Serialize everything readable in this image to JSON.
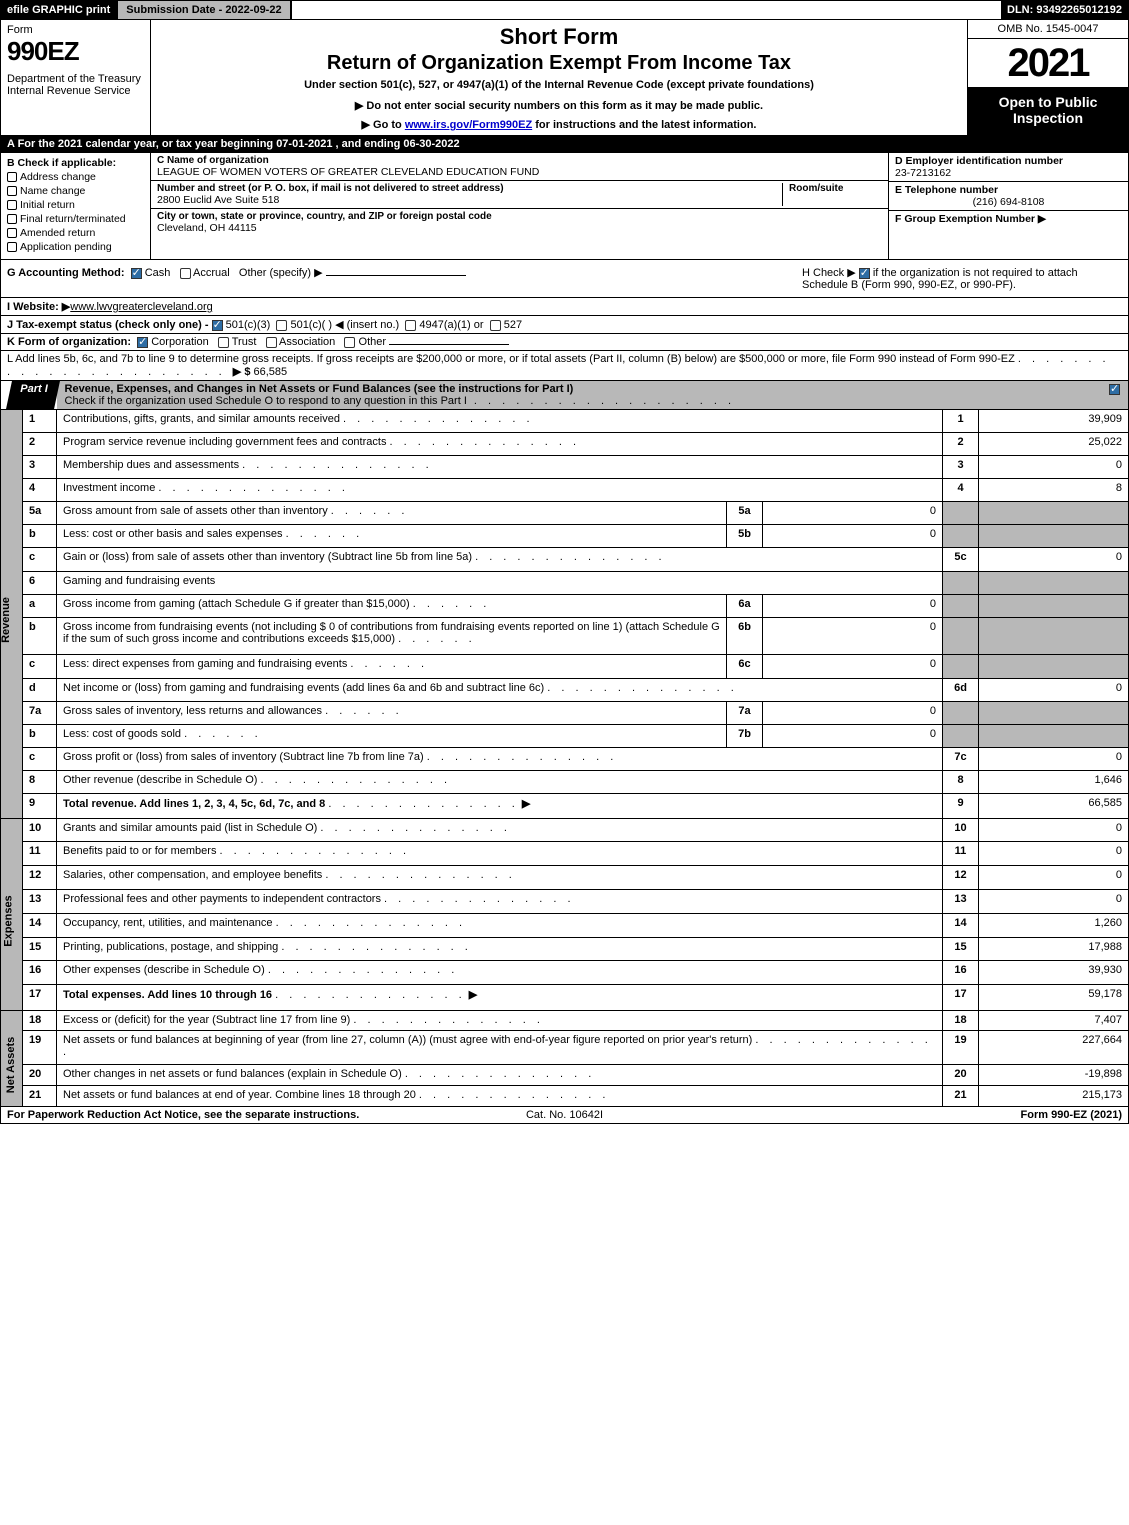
{
  "topbar": {
    "efile": "efile GRAPHIC print",
    "subdate": "Submission Date - 2022-09-22",
    "dln": "DLN: 93492265012192"
  },
  "header": {
    "formword": "Form",
    "formnum": "990EZ",
    "dept": "Department of the Treasury\nInternal Revenue Service",
    "short": "Short Form",
    "return": "Return of Organization Exempt From Income Tax",
    "under": "Under section 501(c), 527, or 4947(a)(1) of the Internal Revenue Code (except private foundations)",
    "ssn": "▶ Do not enter social security numbers on this form as it may be made public.",
    "goto_pre": "▶ Go to ",
    "goto_link": "www.irs.gov/Form990EZ",
    "goto_post": " for instructions and the latest information.",
    "omb": "OMB No. 1545-0047",
    "year": "2021",
    "open": "Open to Public Inspection"
  },
  "rowA": "A  For the 2021 calendar year, or tax year beginning 07-01-2021 , and ending 06-30-2022",
  "sectionB": {
    "head": "B  Check if applicable:",
    "items": [
      "Address change",
      "Name change",
      "Initial return",
      "Final return/terminated",
      "Amended return",
      "Application pending"
    ]
  },
  "sectionC": {
    "name_label": "C Name of organization",
    "name": "LEAGUE OF WOMEN VOTERS OF GREATER CLEVELAND EDUCATION FUND",
    "street_label": "Number and street (or P. O. box, if mail is not delivered to street address)",
    "room_label": "Room/suite",
    "street": "2800 Euclid Ave Suite 518",
    "city_label": "City or town, state or province, country, and ZIP or foreign postal code",
    "city": "Cleveland, OH  44115"
  },
  "sectionD": {
    "label": "D Employer identification number",
    "value": "23-7213162"
  },
  "sectionE": {
    "label": "E Telephone number",
    "value": "(216) 694-8108"
  },
  "sectionF": {
    "label": "F Group Exemption Number ▶"
  },
  "rowG": {
    "label": "G Accounting Method:",
    "cash": "Cash",
    "accrual": "Accrual",
    "other": "Other (specify) ▶"
  },
  "rowH": {
    "text1": "H  Check ▶ ",
    "text2": " if the organization is not required to attach Schedule B (Form 990, 990-EZ, or 990-PF)."
  },
  "rowI": {
    "label": "I Website: ▶",
    "value": "www.lwvgreatercleveland.org"
  },
  "rowJ": {
    "label": "J Tax-exempt status (check only one) - ",
    "o1": "501(c)(3)",
    "o2": "501(c)(  ) ◀ (insert no.)",
    "o3": "4947(a)(1) or",
    "o4": "527"
  },
  "rowK": {
    "label": "K Form of organization:",
    "items": [
      "Corporation",
      "Trust",
      "Association",
      "Other"
    ]
  },
  "rowL": {
    "text": "L Add lines 5b, 6c, and 7b to line 9 to determine gross receipts. If gross receipts are $200,000 or more, or if total assets (Part II, column (B) below) are $500,000 or more, file Form 990 instead of Form 990-EZ",
    "arrow": "▶ $",
    "value": "66,585"
  },
  "partI": {
    "tab": "Part I",
    "title": "Revenue, Expenses, and Changes in Net Assets or Fund Balances (see the instructions for Part I)",
    "subtitle": "Check if the organization used Schedule O to respond to any question in this Part I"
  },
  "side_labels": {
    "revenue": "Revenue",
    "expenses": "Expenses",
    "netassets": "Net Assets"
  },
  "lines": {
    "revenue": [
      {
        "no": "1",
        "desc": "Contributions, gifts, grants, and similar amounts received",
        "box": "1",
        "val": "39,909"
      },
      {
        "no": "2",
        "desc": "Program service revenue including government fees and contracts",
        "box": "2",
        "val": "25,022"
      },
      {
        "no": "3",
        "desc": "Membership dues and assessments",
        "box": "3",
        "val": "0"
      },
      {
        "no": "4",
        "desc": "Investment income",
        "box": "4",
        "val": "8"
      },
      {
        "no": "5a",
        "desc": "Gross amount from sale of assets other than inventory",
        "inlabel": "5a",
        "inval": "0"
      },
      {
        "no": "b",
        "desc": "Less: cost or other basis and sales expenses",
        "inlabel": "5b",
        "inval": "0"
      },
      {
        "no": "c",
        "desc": "Gain or (loss) from sale of assets other than inventory (Subtract line 5b from line 5a)",
        "box": "5c",
        "val": "0"
      },
      {
        "no": "6",
        "desc": "Gaming and fundraising events"
      },
      {
        "no": "a",
        "desc": "Gross income from gaming (attach Schedule G if greater than $15,000)",
        "inlabel": "6a",
        "inval": "0"
      },
      {
        "no": "b",
        "desc": "Gross income from fundraising events (not including $  0           of contributions from fundraising events reported on line 1) (attach Schedule G if the sum of such gross income and contributions exceeds $15,000)",
        "inlabel": "6b",
        "inval": "0"
      },
      {
        "no": "c",
        "desc": "Less: direct expenses from gaming and fundraising events",
        "inlabel": "6c",
        "inval": "0"
      },
      {
        "no": "d",
        "desc": "Net income or (loss) from gaming and fundraising events (add lines 6a and 6b and subtract line 6c)",
        "box": "6d",
        "val": "0"
      },
      {
        "no": "7a",
        "desc": "Gross sales of inventory, less returns and allowances",
        "inlabel": "7a",
        "inval": "0"
      },
      {
        "no": "b",
        "desc": "Less: cost of goods sold",
        "inlabel": "7b",
        "inval": "0"
      },
      {
        "no": "c",
        "desc": "Gross profit or (loss) from sales of inventory (Subtract line 7b from line 7a)",
        "box": "7c",
        "val": "0"
      },
      {
        "no": "8",
        "desc": "Other revenue (describe in Schedule O)",
        "box": "8",
        "val": "1,646"
      },
      {
        "no": "9",
        "desc": "Total revenue. Add lines 1, 2, 3, 4, 5c, 6d, 7c, and 8",
        "arrow": "▶",
        "box": "9",
        "val": "66,585",
        "bold": true
      }
    ],
    "expenses": [
      {
        "no": "10",
        "desc": "Grants and similar amounts paid (list in Schedule O)",
        "box": "10",
        "val": "0"
      },
      {
        "no": "11",
        "desc": "Benefits paid to or for members",
        "box": "11",
        "val": "0"
      },
      {
        "no": "12",
        "desc": "Salaries, other compensation, and employee benefits",
        "box": "12",
        "val": "0"
      },
      {
        "no": "13",
        "desc": "Professional fees and other payments to independent contractors",
        "box": "13",
        "val": "0"
      },
      {
        "no": "14",
        "desc": "Occupancy, rent, utilities, and maintenance",
        "box": "14",
        "val": "1,260"
      },
      {
        "no": "15",
        "desc": "Printing, publications, postage, and shipping",
        "box": "15",
        "val": "17,988"
      },
      {
        "no": "16",
        "desc": "Other expenses (describe in Schedule O)",
        "box": "16",
        "val": "39,930"
      },
      {
        "no": "17",
        "desc": "Total expenses. Add lines 10 through 16",
        "arrow": "▶",
        "box": "17",
        "val": "59,178",
        "bold": true
      }
    ],
    "netassets": [
      {
        "no": "18",
        "desc": "Excess or (deficit) for the year (Subtract line 17 from line 9)",
        "box": "18",
        "val": "7,407"
      },
      {
        "no": "19",
        "desc": "Net assets or fund balances at beginning of year (from line 27, column (A)) (must agree with end-of-year figure reported on prior year's return)",
        "box": "19",
        "val": "227,664"
      },
      {
        "no": "20",
        "desc": "Other changes in net assets or fund balances (explain in Schedule O)",
        "box": "20",
        "val": "-19,898"
      },
      {
        "no": "21",
        "desc": "Net assets or fund balances at end of year. Combine lines 18 through 20",
        "box": "21",
        "val": "215,173"
      }
    ]
  },
  "footer": {
    "left": "For Paperwork Reduction Act Notice, see the separate instructions.",
    "center": "Cat. No. 10642I",
    "right_pre": "Form ",
    "right_bold": "990-EZ",
    "right_post": " (2021)"
  },
  "colors": {
    "black": "#000000",
    "grey": "#b8b8b8",
    "blue_check": "#2e6da4",
    "link": "#0000cc"
  }
}
